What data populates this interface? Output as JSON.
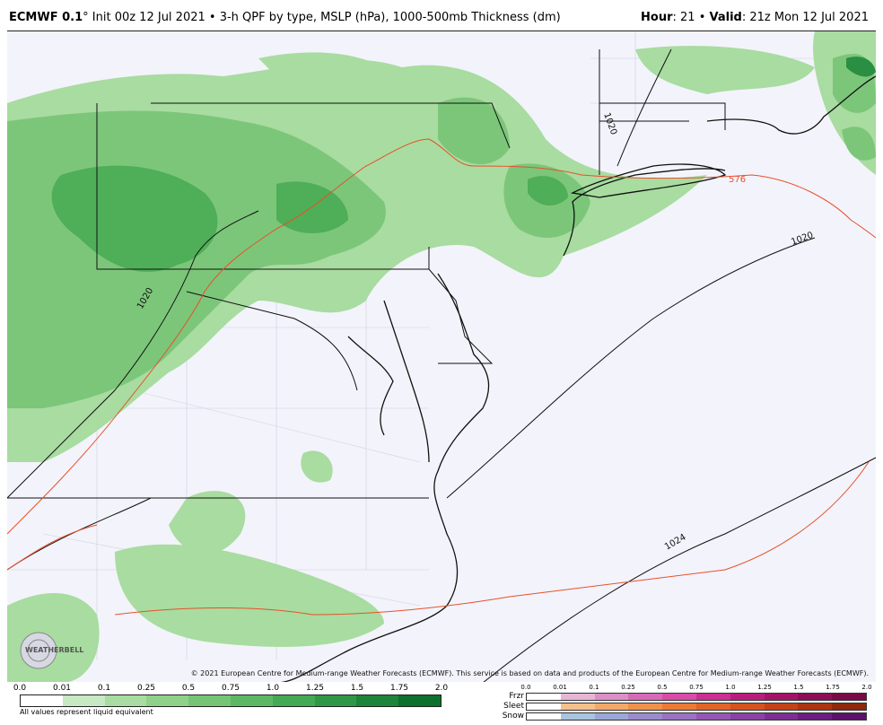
{
  "header": {
    "model": "ECMWF 0.1",
    "title_rest": "° Init 00z 12 Jul 2021 • 3-h QPF by type, MSLP (hPa), 1000-500mb Thickness (dm)",
    "hour_label": "Hour",
    "hour_value": ": 21 • ",
    "valid_label": "Valid",
    "valid_value": ": 21z Mon 12 Jul 2021"
  },
  "map": {
    "contour_labels": {
      "pressure_1020_west": "1020",
      "pressure_1020_ne": "1020",
      "pressure_1020_east": "1020",
      "pressure_1024": "1024",
      "thickness_576": "576"
    },
    "colors": {
      "ocean": "#f3f3fb",
      "land": "#f3f3fb",
      "precip_light": "#a8dca0",
      "precip_medium": "#7cc67a",
      "precip_heavy": "#4fae58",
      "precip_heaviest": "#2a8f42",
      "isobar": "#111111",
      "thickness": "#e8502a",
      "county": "#c8c8d8"
    },
    "logo_text": "WEATHERBELL"
  },
  "copyright": "© 2021 European Centre for Medium-range Weather Forecasts (ECMWF). This service is based on data and products of the European Centre for Medium-range Weather Forecasts (ECMWF).",
  "legend_qpf": {
    "ticks": [
      "0.0",
      "0.01",
      "0.1",
      "0.25",
      "0.5",
      "0.75",
      "1.0",
      "1.25",
      "1.5",
      "1.75",
      "2.0"
    ],
    "colors": [
      "#ffffff",
      "#c6e8c2",
      "#a8dca0",
      "#8fd18a",
      "#76c576",
      "#5db865",
      "#44a955",
      "#2f9846",
      "#1c8539",
      "#0d702c"
    ],
    "note": "All values represent liquid equivalent"
  },
  "legend_ptype": {
    "ticks": [
      "0.0",
      "0.01",
      "0.1",
      "0.25",
      "0.5",
      "0.75",
      "1.0",
      "1.25",
      "1.5",
      "1.75",
      "2.0"
    ],
    "rows": [
      {
        "label": "Frzr",
        "colors": [
          "#ffffff",
          "#e6b6d4",
          "#dc8fc6",
          "#d66ab8",
          "#d94ca8",
          "#cc2f92",
          "#b81c7c",
          "#a31467",
          "#8e0e55",
          "#7a0a46"
        ]
      },
      {
        "label": "Sleet",
        "colors": [
          "#ffffff",
          "#f5c08a",
          "#f2a868",
          "#ef914c",
          "#ec7a36",
          "#e36428",
          "#d6521e",
          "#c44218",
          "#ac3412",
          "#8f280c"
        ]
      },
      {
        "label": "Snow",
        "colors": [
          "#ffffff",
          "#a8c4de",
          "#9aa8d6",
          "#9a8ccd",
          "#9a72c2",
          "#9458b4",
          "#8a42a4",
          "#7c2f92",
          "#6c1f80",
          "#5a126c"
        ]
      }
    ]
  }
}
